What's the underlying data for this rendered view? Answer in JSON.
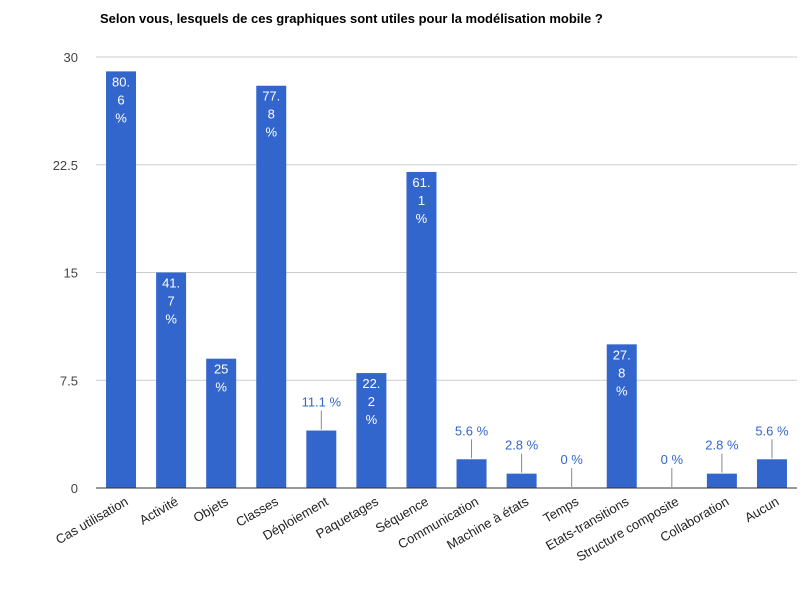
{
  "chart_data": {
    "type": "bar",
    "title": "Selon vous, lesquels de ces graphiques sont utiles pour la modélisation mobile ?",
    "xlabel": "",
    "ylabel": "",
    "ylim": [
      0,
      30
    ],
    "yticks": [
      "0",
      "7.5",
      "15",
      "22.5",
      "30"
    ],
    "grid": true,
    "legend": "none",
    "bar_color": "#3366cc",
    "categories": [
      "Cas utilisation",
      "Activité",
      "Objets",
      "Classes",
      "Déploiement",
      "Paquetages",
      "Séquence",
      "Communication",
      "Machine à états",
      "Temps",
      "Etats-transitions",
      "Structure composite",
      "Collaboration",
      "Aucun"
    ],
    "values": [
      29,
      15,
      9,
      28,
      4,
      8,
      22,
      2,
      1,
      0,
      10,
      0,
      1,
      2
    ],
    "data_labels": [
      "80.6 %",
      "41.7 %",
      "25 %",
      "77.8 %",
      "11.1 %",
      "22.2 %",
      "61.1 %",
      "5.6 %",
      "2.8 %",
      "0 %",
      "27.8 %",
      "0 %",
      "2.8 %",
      "5.6 %"
    ]
  }
}
